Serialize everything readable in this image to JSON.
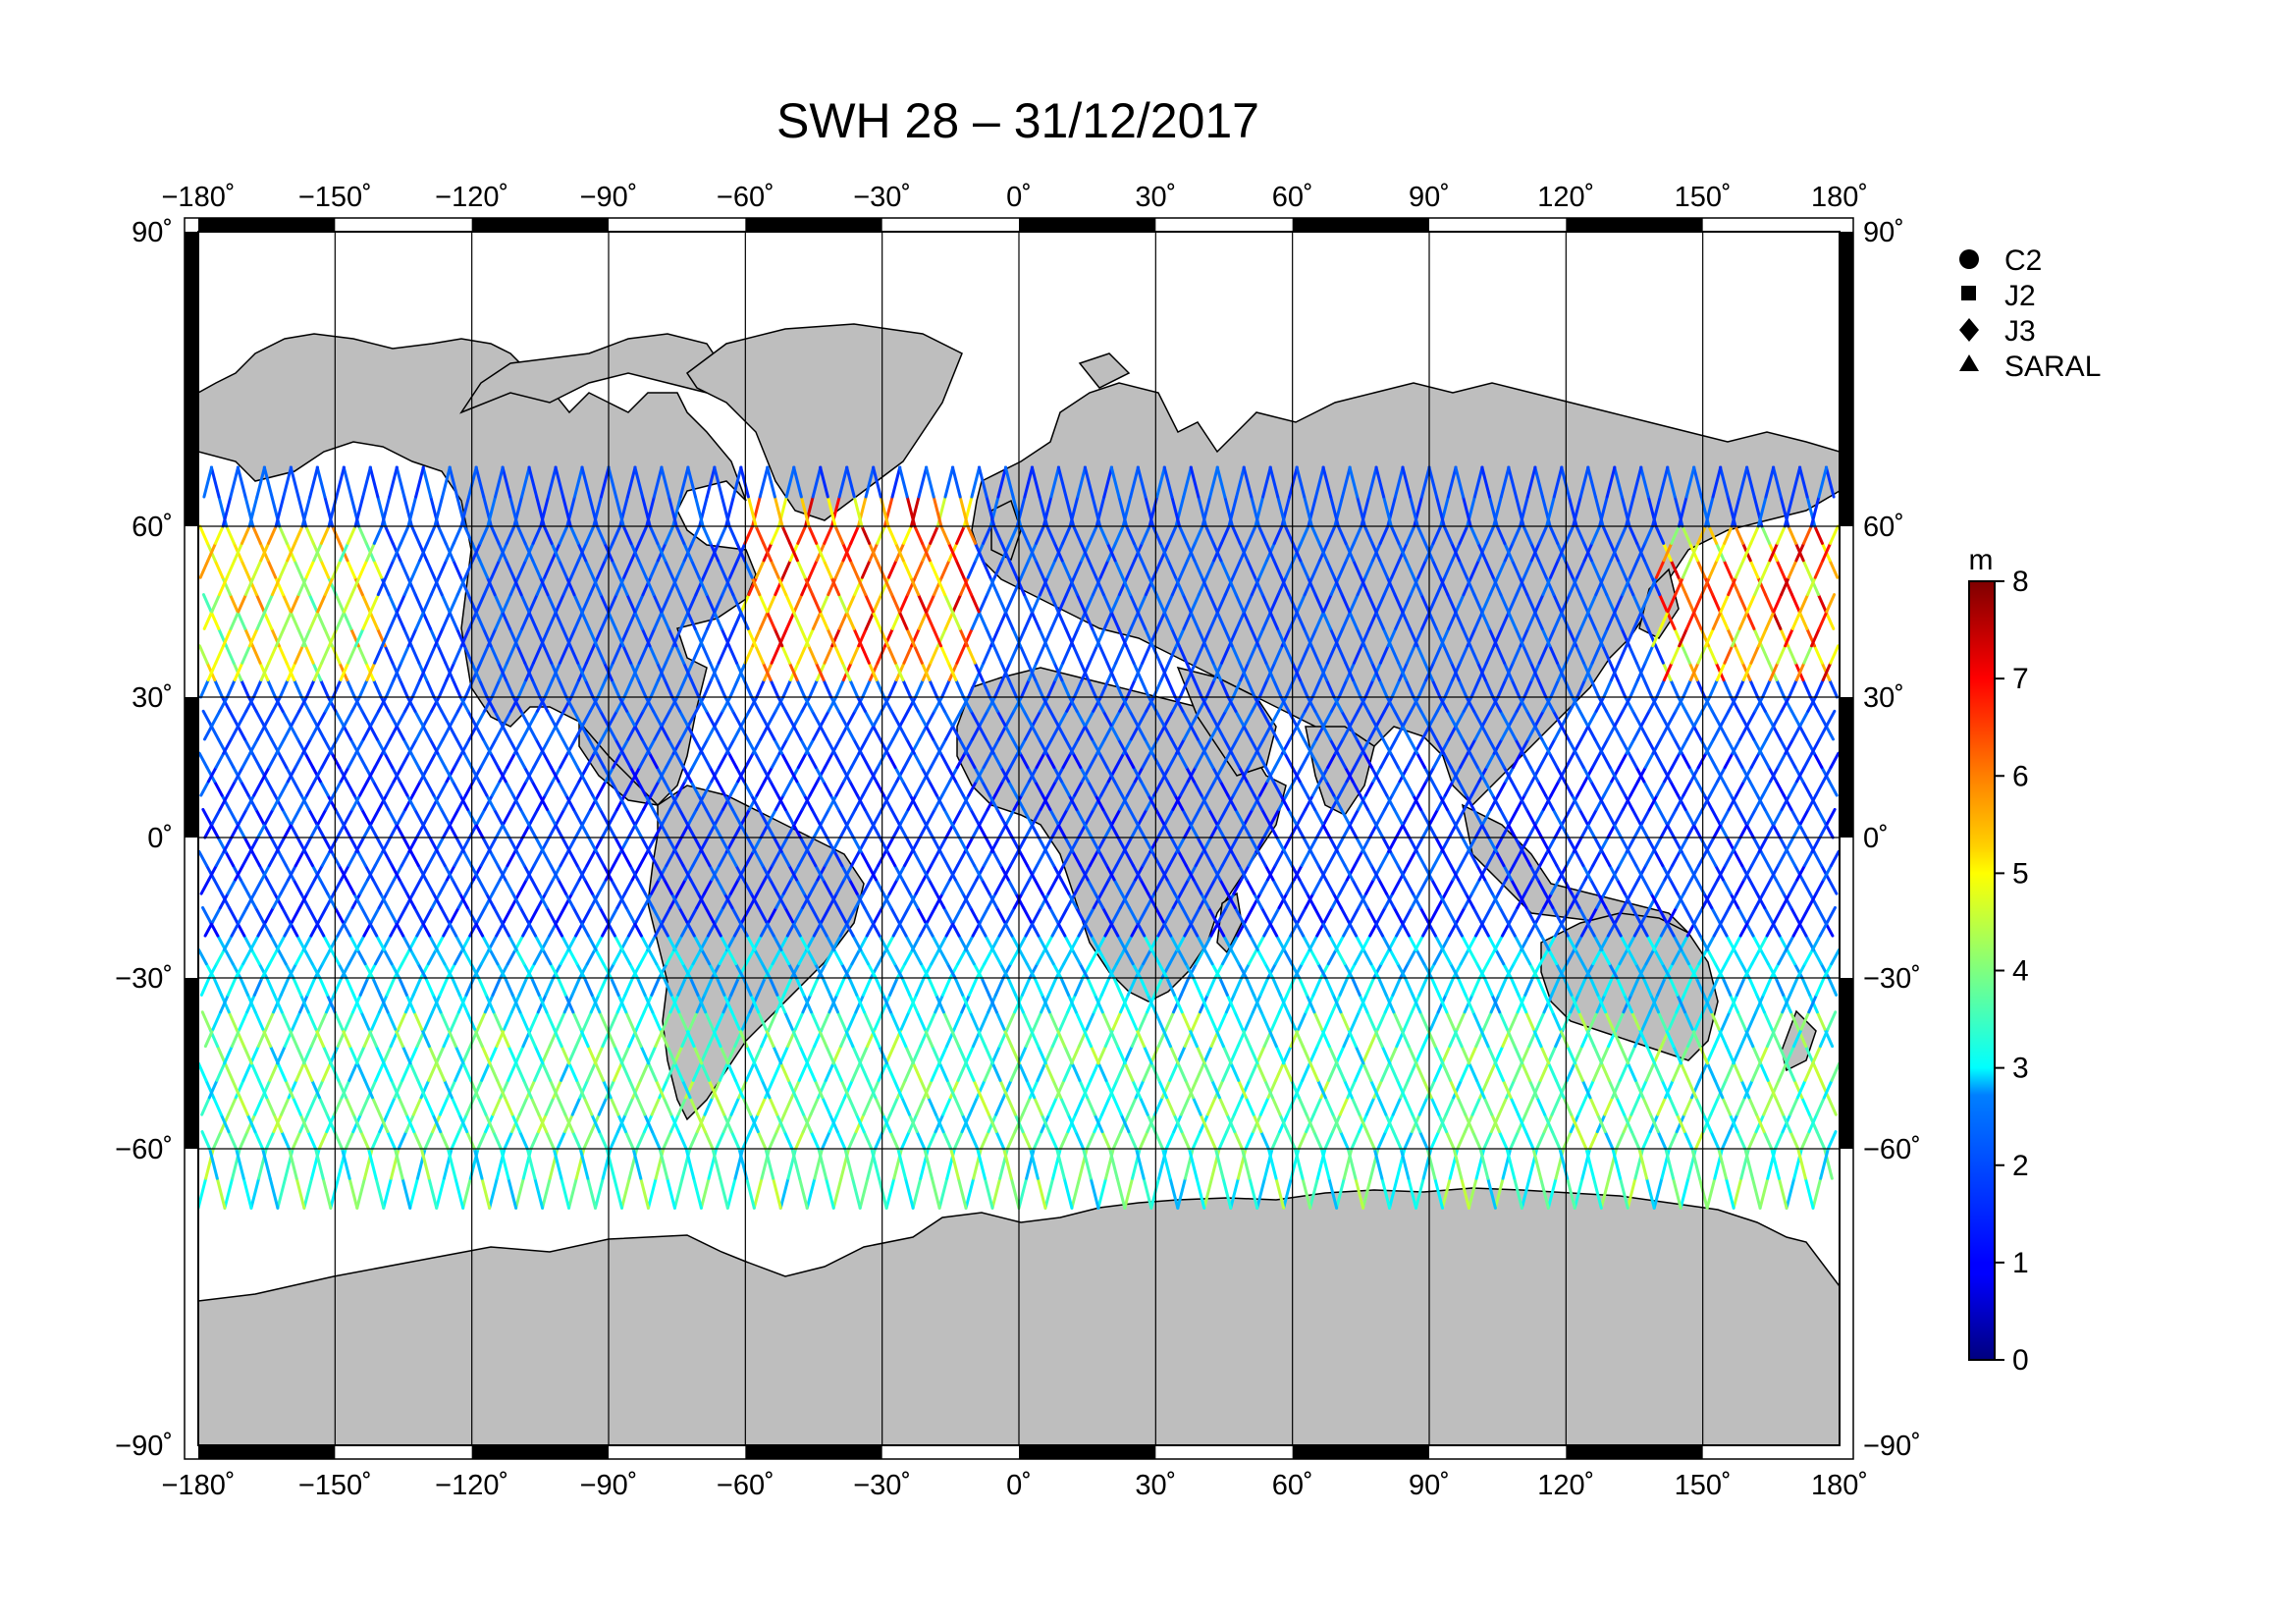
{
  "title": "SWH 28 – 31/12/2017",
  "map": {
    "lon_ticks": [
      "−180˚",
      "−150˚",
      "−120˚",
      "−90˚",
      "−60˚",
      "−30˚",
      "0˚",
      "30˚",
      "60˚",
      "90˚",
      "120˚",
      "150˚",
      "180˚"
    ],
    "lat_ticks_left": [
      "90˚",
      "60˚",
      "30˚",
      "0˚",
      "−30˚",
      "−60˚",
      "−90˚"
    ],
    "lat_ticks_right": [
      "90˚",
      "60˚",
      "30˚",
      "0˚",
      "−30˚",
      "−60˚",
      "−90˚"
    ],
    "lon_range": [
      -180,
      180
    ],
    "lat_range": [
      -90,
      90
    ],
    "projection": "Mercator-like (compressed south)",
    "land_color": "#bebebe",
    "grid": true
  },
  "legend": {
    "satellites": [
      {
        "label": "C2",
        "marker": "circle"
      },
      {
        "label": "J2",
        "marker": "square"
      },
      {
        "label": "J3",
        "marker": "diamond"
      },
      {
        "label": "SARAL",
        "marker": "triangle"
      }
    ]
  },
  "colorbar": {
    "unit": "m",
    "ticks": [
      "8",
      "7",
      "6",
      "5",
      "4",
      "3",
      "2",
      "1",
      "0"
    ],
    "min": 0,
    "max": 8,
    "colormap": "jet"
  },
  "chart_data": {
    "type": "scatter",
    "title": "SWH 28 – 31/12/2017",
    "xlabel": "",
    "ylabel": "",
    "xlim": [
      -180,
      180
    ],
    "ylim": [
      -90,
      90
    ],
    "value_range": [
      0,
      8
    ],
    "value_unit": "m",
    "series": [
      {
        "name": "C2",
        "marker": "circle"
      },
      {
        "name": "J2",
        "marker": "square"
      },
      {
        "name": "J3",
        "marker": "diamond"
      },
      {
        "name": "SARAL",
        "marker": "triangle"
      }
    ]
  }
}
